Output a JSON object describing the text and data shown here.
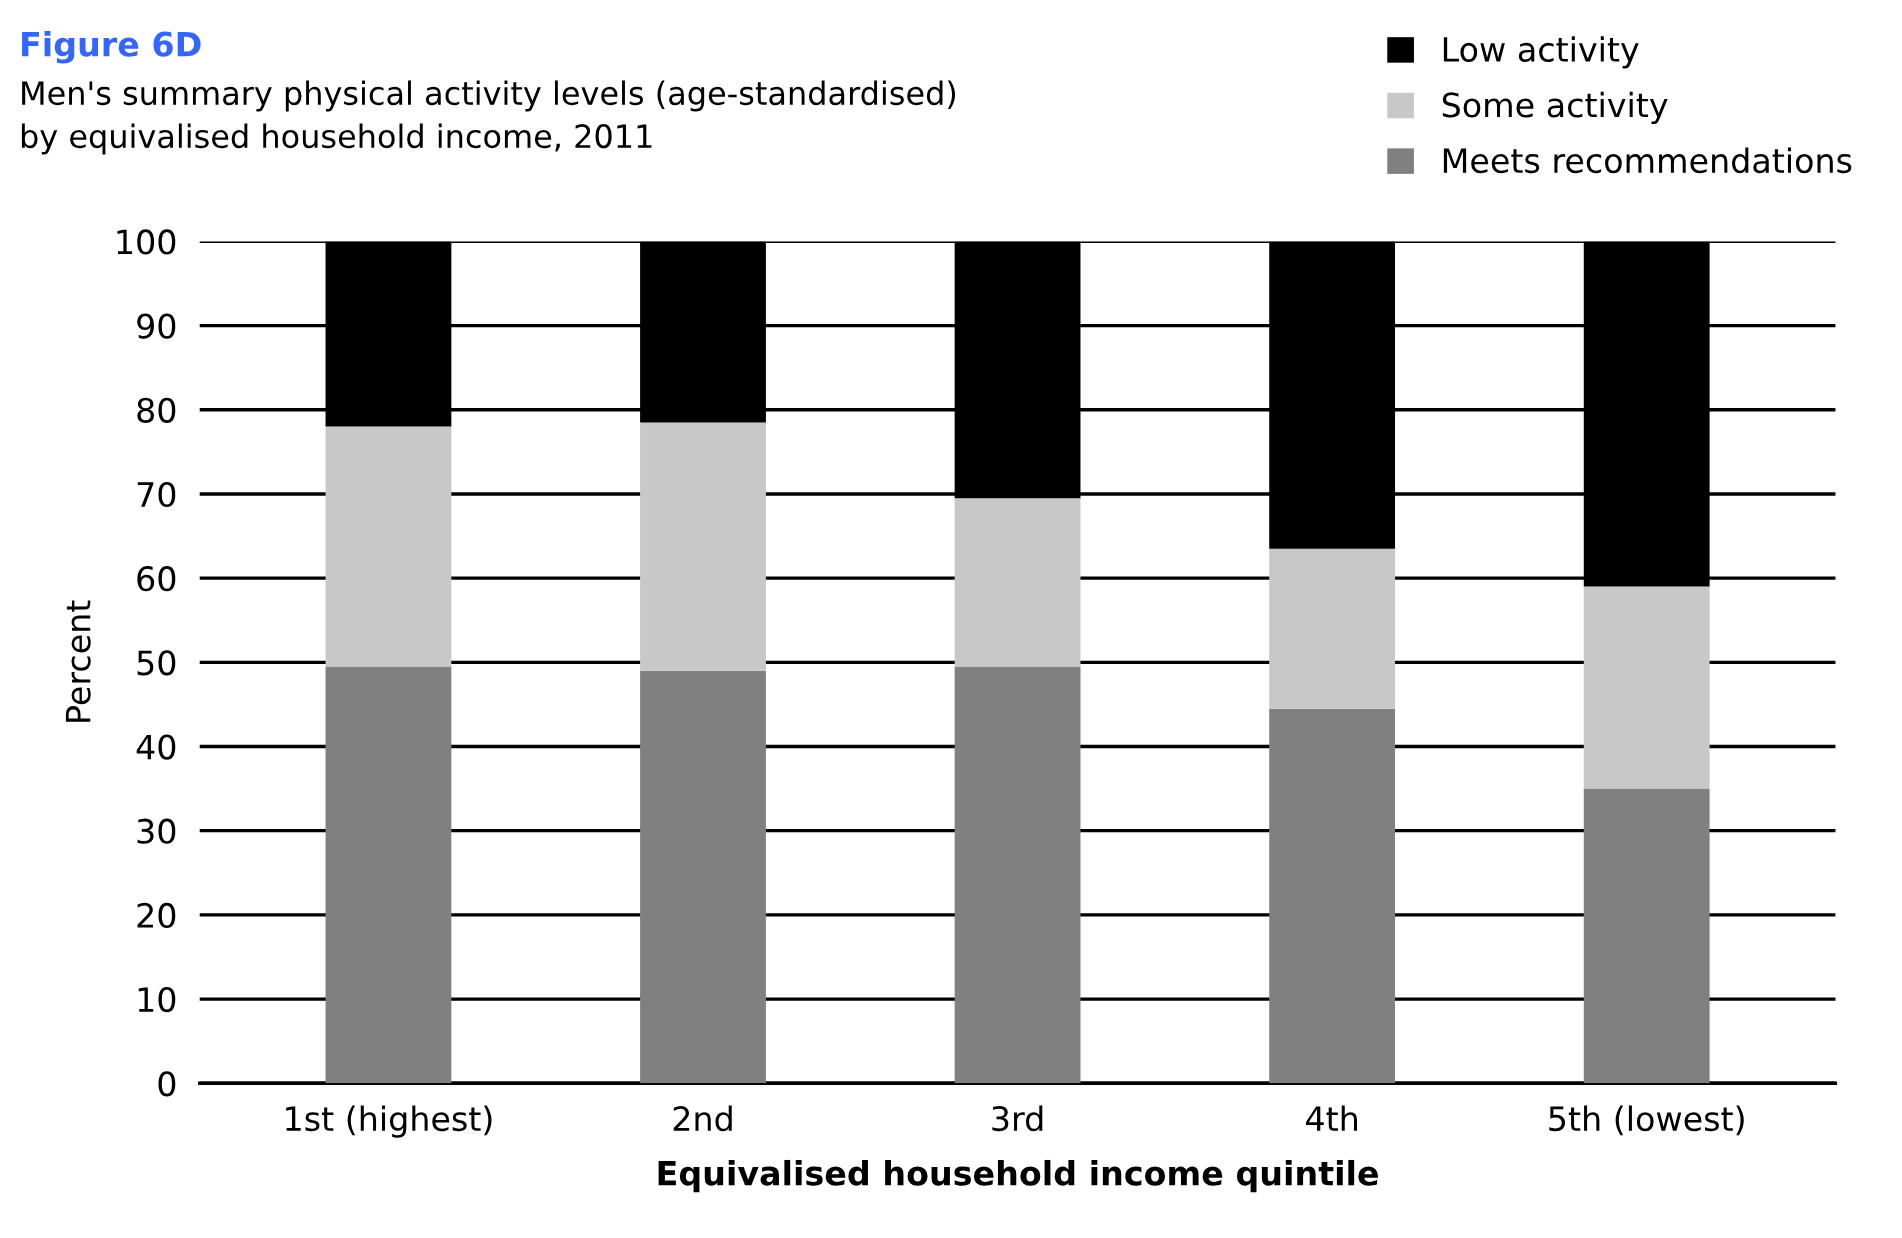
{
  "chart_data": {
    "type": "bar",
    "stacked": true,
    "title": "Figure 6D",
    "subtitle": "Men's summary physical activity levels (age-standardised)\nby equivalised household income, 2011",
    "xlabel": "Equivalised household income quintile",
    "ylabel": "Percent",
    "categories": [
      "1st (highest)",
      "2nd",
      "3rd",
      "4th",
      "5th (lowest)"
    ],
    "series": [
      {
        "name": "Meets recommendations",
        "color": "#808080",
        "values": [
          49.5,
          49,
          49.5,
          44.5,
          35
        ]
      },
      {
        "name": "Some activity",
        "color": "#c8c8c8",
        "values": [
          28.5,
          29.5,
          20,
          19,
          24
        ]
      },
      {
        "name": "Low activity",
        "color": "#000000",
        "values": [
          22,
          21.5,
          30.5,
          36.5,
          41
        ]
      }
    ],
    "ylim": [
      0,
      100
    ],
    "yticks": [
      0,
      10,
      20,
      30,
      40,
      50,
      60,
      70,
      80,
      90,
      100
    ],
    "grid": "y",
    "legend": "top right"
  }
}
